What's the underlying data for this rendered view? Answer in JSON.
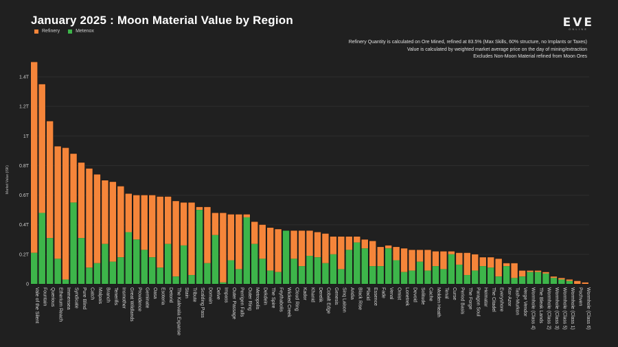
{
  "header": {
    "title": "January 2025 : Moon Material Value by Region",
    "notes": [
      "Refinery Quantity is calculated on Ore Mined, refined at 83.5% (Max Skills, 60% structure, no Implants or Taxes)",
      "Value is calculated by weighted market average price on the day of mining/extraction",
      "Excludes Non-Moon Material refined from Moon Ores"
    ],
    "logo_main": "EVE",
    "logo_sub": "ONLINE"
  },
  "colors": {
    "refinery": "#f5853a",
    "metenox": "#3db54a",
    "background": "#202020",
    "grid": "#2e2e2e"
  },
  "chart_data": {
    "type": "bar",
    "stacked": true,
    "title": "January 2025 : Moon Material Value by Region",
    "xlabel": "",
    "ylabel": "Market Value (ISK)",
    "ylim": [
      0,
      1.5
    ],
    "yunit": "T",
    "yticks": [
      0,
      0.2,
      0.4,
      0.6,
      0.8,
      1.0,
      1.2,
      1.4
    ],
    "ytick_labels": [
      "0",
      "0.2T",
      "0.4T",
      "0.6T",
      "0.8T",
      "1T",
      "1.2T",
      "1.4T"
    ],
    "grid": true,
    "legend": {
      "position": "top-left",
      "entries": [
        "Refinery",
        "Metenox"
      ]
    },
    "categories": [
      "Vale of the Silent",
      "Fountain",
      "Querious",
      "Etherium Reach",
      "Immensea",
      "Syndicate",
      "Pure Blind",
      "Catch",
      "Malpais",
      "Branch",
      "Tenerifis",
      "Insmother",
      "Great Wildlands",
      "Providence",
      "Geminate",
      "Oasa",
      "Esoteria",
      "Detorid",
      "The Kalevala Expanse",
      "Stain",
      "Tribute",
      "Scalding Pass",
      "Domain",
      "Delve",
      "Impass",
      "Outer Passage",
      "Perrigen Falls",
      "Outer Ring",
      "Metropolis",
      "Dekdein",
      "The Spire",
      "Feythabolis",
      "Wicked Creek",
      "Cloud Ring",
      "Kador",
      "Khanid",
      "Derelik",
      "Cobalt Edge",
      "Genesis",
      "Sinq Laison",
      "Aridia",
      "Black Rise",
      "Placid",
      "Essence",
      "Fade",
      "Venal",
      "Omist",
      "Lonetrek",
      "Devoid",
      "Solitude",
      "Cache",
      "Molden Heath",
      "Tenal",
      "Curse",
      "Period Basis",
      "The Forge",
      "Paragon Soul",
      "Heimatar",
      "The Citadel",
      "Everyshore",
      "Kor-Azor",
      "Tash-Murkon",
      "Verge Vendor",
      "Wormhole (Class 4)",
      "The Bleak Lands",
      "Wormhole (Class 2)",
      "Wormhole (Class 3)",
      "Wormhole (Class 5)",
      "Wormhole (Class 1)",
      "Pochven",
      "Wormhole (Class 6)"
    ],
    "series": [
      {
        "name": "Metenox",
        "values": [
          0.21,
          0.48,
          0.31,
          0.17,
          0.03,
          0.55,
          0.31,
          0.11,
          0.14,
          0.27,
          0.15,
          0.18,
          0.35,
          0.3,
          0.23,
          0.18,
          0.11,
          0.27,
          0.05,
          0.26,
          0.06,
          0.5,
          0.14,
          0.33,
          0.01,
          0.16,
          0.1,
          0.45,
          0.27,
          0.17,
          0.09,
          0.08,
          0.36,
          0.17,
          0.12,
          0.19,
          0.18,
          0.14,
          0.2,
          0.1,
          0.23,
          0.28,
          0.24,
          0.12,
          0.12,
          0.24,
          0.16,
          0.08,
          0.09,
          0.15,
          0.09,
          0.12,
          0.1,
          0.2,
          0.13,
          0.06,
          0.09,
          0.12,
          0.11,
          0.05,
          0.12,
          0.04,
          0.05,
          0.08,
          0.08,
          0.07,
          0.04,
          0.03,
          0.02,
          0.0,
          0.0
        ]
      },
      {
        "name": "Refinery",
        "values": [
          1.29,
          0.87,
          0.79,
          0.76,
          0.89,
          0.33,
          0.51,
          0.67,
          0.6,
          0.43,
          0.54,
          0.48,
          0.26,
          0.3,
          0.37,
          0.42,
          0.48,
          0.32,
          0.51,
          0.29,
          0.49,
          0.02,
          0.38,
          0.15,
          0.47,
          0.31,
          0.37,
          0.02,
          0.15,
          0.23,
          0.29,
          0.29,
          0.0,
          0.19,
          0.24,
          0.17,
          0.17,
          0.2,
          0.12,
          0.22,
          0.09,
          0.04,
          0.06,
          0.17,
          0.13,
          0.02,
          0.09,
          0.16,
          0.14,
          0.08,
          0.14,
          0.1,
          0.12,
          0.02,
          0.08,
          0.15,
          0.11,
          0.06,
          0.07,
          0.12,
          0.02,
          0.1,
          0.04,
          0.01,
          0.01,
          0.01,
          0.01,
          0.01,
          0.01,
          0.02,
          0.01
        ]
      }
    ]
  }
}
